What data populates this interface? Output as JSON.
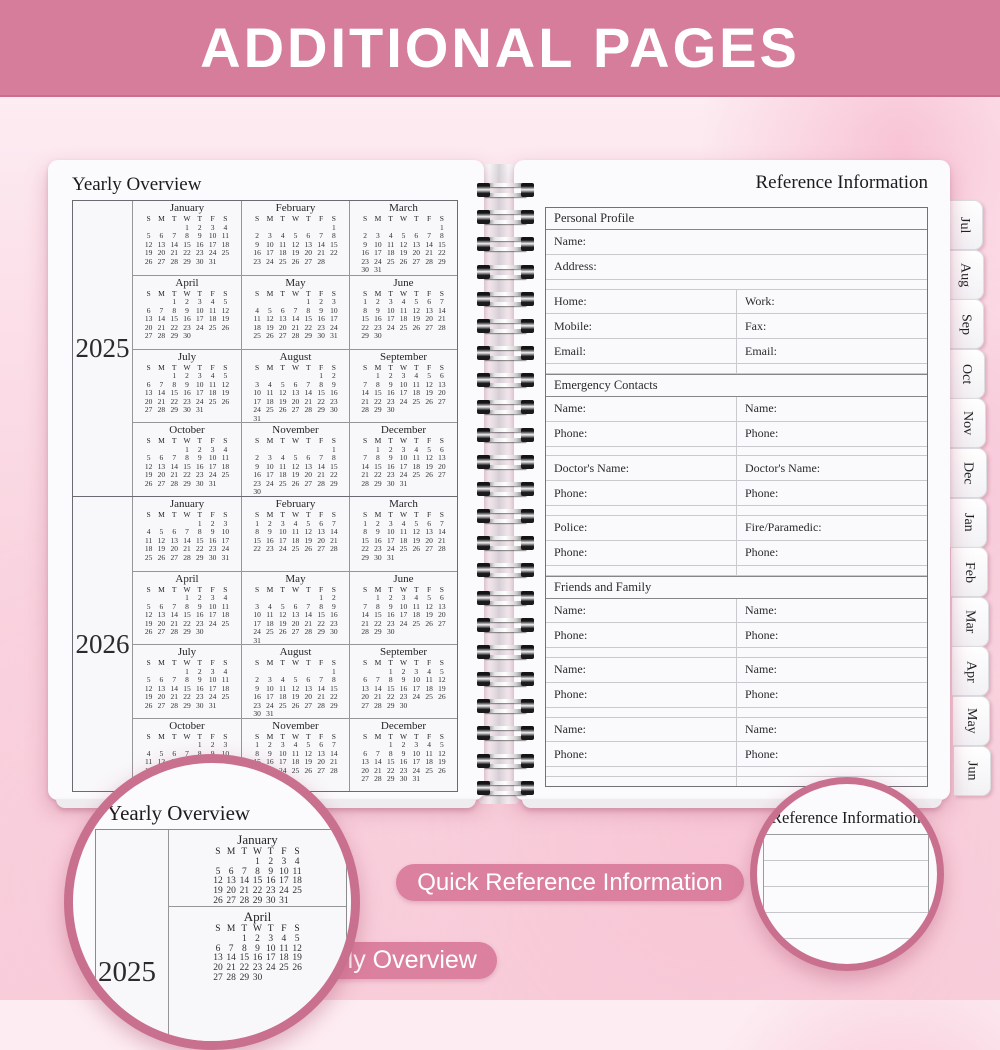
{
  "banner": {
    "title": "ADDITIONAL PAGES"
  },
  "colors": {
    "banner_pink": "#d67d9c",
    "pill_pink": "#dc80a0",
    "circle_border_pink": "#c9708f",
    "page_background": "#fbfafc",
    "background_pink": "#f9d3df"
  },
  "left_page": {
    "title": "Yearly Overview",
    "day_headers": [
      "S",
      "M",
      "T",
      "W",
      "T",
      "F",
      "S"
    ],
    "years": [
      {
        "label": "2025",
        "months": [
          {
            "name": "January",
            "start": 3,
            "days": 31
          },
          {
            "name": "February",
            "start": 6,
            "days": 28
          },
          {
            "name": "March",
            "start": 6,
            "days": 31
          },
          {
            "name": "April",
            "start": 2,
            "days": 30
          },
          {
            "name": "May",
            "start": 4,
            "days": 31
          },
          {
            "name": "June",
            "start": 0,
            "days": 30
          },
          {
            "name": "July",
            "start": 2,
            "days": 31
          },
          {
            "name": "August",
            "start": 5,
            "days": 31
          },
          {
            "name": "September",
            "start": 1,
            "days": 30
          },
          {
            "name": "October",
            "start": 3,
            "days": 31
          },
          {
            "name": "November",
            "start": 6,
            "days": 30
          },
          {
            "name": "December",
            "start": 1,
            "days": 31
          }
        ]
      },
      {
        "label": "2026",
        "months": [
          {
            "name": "January",
            "start": 4,
            "days": 31
          },
          {
            "name": "February",
            "start": 0,
            "days": 28
          },
          {
            "name": "March",
            "start": 0,
            "days": 31
          },
          {
            "name": "April",
            "start": 3,
            "days": 30
          },
          {
            "name": "May",
            "start": 5,
            "days": 31
          },
          {
            "name": "June",
            "start": 1,
            "days": 30
          },
          {
            "name": "July",
            "start": 3,
            "days": 31
          },
          {
            "name": "August",
            "start": 6,
            "days": 31
          },
          {
            "name": "September",
            "start": 2,
            "days": 30
          },
          {
            "name": "October",
            "start": 4,
            "days": 31
          },
          {
            "name": "November",
            "start": 0,
            "days": 30
          },
          {
            "name": "December",
            "start": 2,
            "days": 31
          }
        ]
      }
    ]
  },
  "right_page": {
    "title": "Reference Information",
    "sections": [
      {
        "header": "Personal Profile",
        "rows": [
          {
            "l": "Name:"
          },
          {
            "l": "Address:"
          },
          {
            "l": ""
          },
          {
            "l": "Home:",
            "r": "Work:"
          },
          {
            "l": "Mobile:",
            "r": "Fax:"
          },
          {
            "l": "Email:",
            "r": "Email:"
          },
          {
            "l": "",
            "r": ""
          }
        ]
      },
      {
        "header": "Emergency Contacts",
        "rows": [
          {
            "l": "Name:",
            "r": "Name:"
          },
          {
            "l": "Phone:",
            "r": "Phone:"
          },
          {
            "l": "",
            "r": ""
          },
          {
            "l": "Doctor's Name:",
            "r": "Doctor's Name:"
          },
          {
            "l": "Phone:",
            "r": "Phone:"
          },
          {
            "l": "",
            "r": ""
          },
          {
            "l": "Police:",
            "r": "Fire/Paramedic:"
          },
          {
            "l": "Phone:",
            "r": "Phone:"
          },
          {
            "l": "",
            "r": ""
          }
        ]
      },
      {
        "header": "Friends and Family",
        "rows": [
          {
            "l": "Name:",
            "r": "Name:"
          },
          {
            "l": "Phone:",
            "r": "Phone:"
          },
          {
            "l": "",
            "r": ""
          },
          {
            "l": "Name:",
            "r": "Name:"
          },
          {
            "l": "Phone:",
            "r": "Phone:"
          },
          {
            "l": "",
            "r": ""
          },
          {
            "l": "Name:",
            "r": "Name:"
          },
          {
            "l": "Phone:",
            "r": "Phone:"
          },
          {
            "l": "",
            "r": ""
          },
          {
            "l": "",
            "r": ""
          }
        ]
      }
    ]
  },
  "tabs": [
    "Jul",
    "Aug",
    "Sep",
    "Oct",
    "Nov",
    "Dec",
    "Jan",
    "Feb",
    "Mar",
    "Apr",
    "May",
    "Jun"
  ],
  "callouts": {
    "zoom_left_title": "Yearly Overview",
    "zoom_left_year": "2025",
    "zoom_right_title": "Reference Information",
    "pill_yearly": "Yearly Overview",
    "pill_quick": "Quick Reference Information"
  }
}
